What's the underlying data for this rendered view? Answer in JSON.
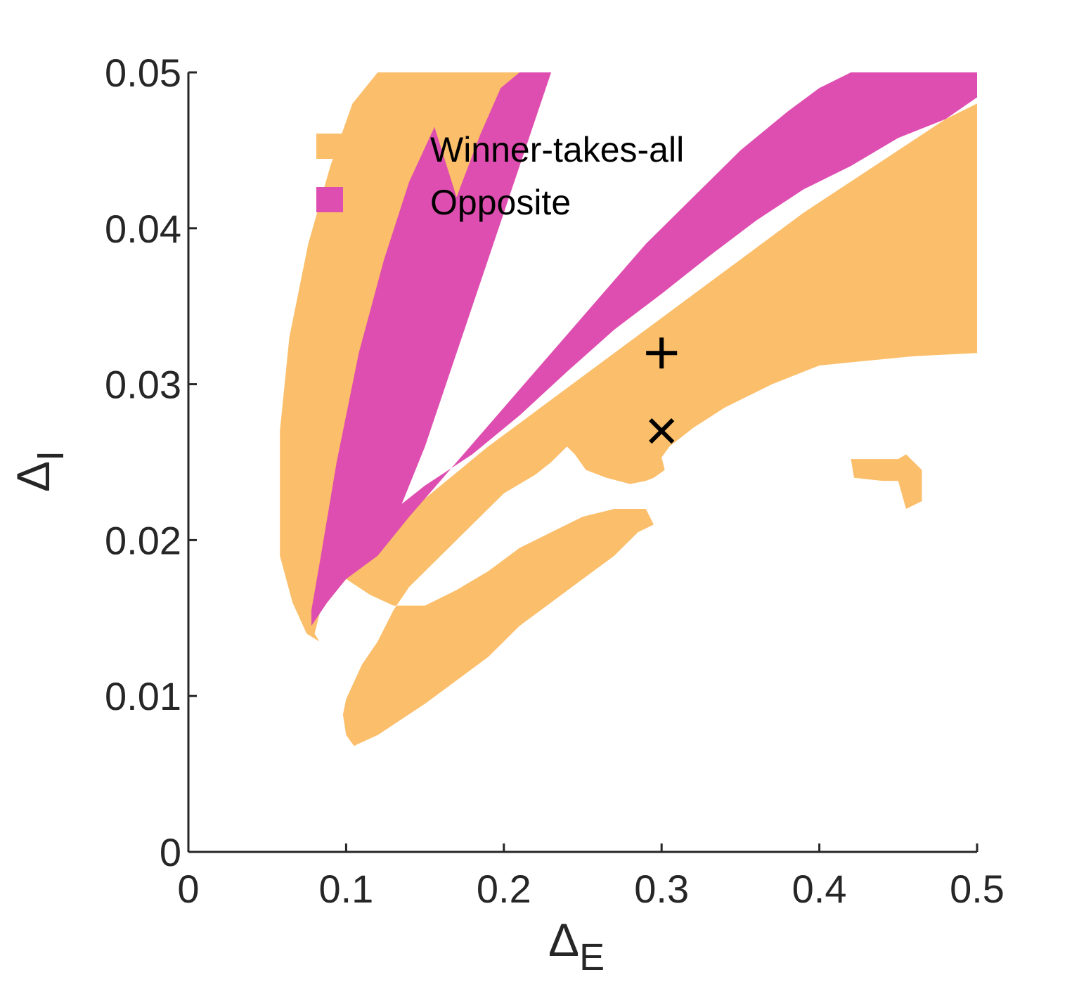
{
  "chart_data": {
    "type": "area",
    "title": "",
    "xlabel": {
      "symbol": "Δ",
      "subscript": "E"
    },
    "ylabel": {
      "symbol": "Δ",
      "subscript": "I"
    },
    "xlim": [
      0,
      0.5
    ],
    "ylim": [
      0,
      0.05
    ],
    "x_ticks": [
      0,
      0.1,
      0.2,
      0.3,
      0.4,
      0.5
    ],
    "x_tick_labels": [
      "0",
      "0.1",
      "0.2",
      "0.3",
      "0.4",
      "0.5"
    ],
    "y_ticks": [
      0,
      0.01,
      0.02,
      0.03,
      0.04,
      0.05
    ],
    "y_tick_labels": [
      "0",
      "0.01",
      "0.02",
      "0.03",
      "0.04",
      "0.05"
    ],
    "grid": false,
    "legend_position": "top-center",
    "series": [
      {
        "name": "Winner-takes-all",
        "color": "#fbbe6a",
        "regions": [
          [
            [
              0.12,
              0.05
            ],
            [
              0.21,
              0.05
            ],
            [
              0.2,
              0.046
            ],
            [
              0.18,
              0.042
            ],
            [
              0.16,
              0.036
            ],
            [
              0.14,
              0.03
            ],
            [
              0.12,
              0.025
            ],
            [
              0.1,
              0.02
            ],
            [
              0.085,
              0.016
            ],
            [
              0.08,
              0.014
            ],
            [
              0.083,
              0.0135
            ],
            [
              0.075,
              0.014
            ],
            [
              0.066,
              0.016
            ],
            [
              0.058,
              0.019
            ],
            [
              0.058,
              0.027
            ],
            [
              0.064,
              0.033
            ],
            [
              0.076,
              0.039
            ],
            [
              0.09,
              0.044
            ],
            [
              0.104,
              0.048
            ]
          ],
          [
            [
              0.074,
              0.0145
            ],
            [
              0.088,
              0.016
            ],
            [
              0.104,
              0.019
            ],
            [
              0.13,
              0.021
            ],
            [
              0.16,
              0.0235
            ],
            [
              0.19,
              0.026
            ],
            [
              0.23,
              0.029
            ],
            [
              0.27,
              0.032
            ],
            [
              0.31,
              0.035
            ],
            [
              0.35,
              0.038
            ],
            [
              0.39,
              0.041
            ],
            [
              0.42,
              0.043
            ],
            [
              0.45,
              0.045
            ],
            [
              0.48,
              0.047
            ],
            [
              0.5,
              0.048
            ],
            [
              0.5,
              0.032
            ],
            [
              0.46,
              0.0318
            ],
            [
              0.43,
              0.0315
            ],
            [
              0.4,
              0.0312
            ],
            [
              0.37,
              0.03
            ],
            [
              0.34,
              0.0285
            ],
            [
              0.32,
              0.0272
            ],
            [
              0.305,
              0.026
            ],
            [
              0.3,
              0.0253
            ],
            [
              0.302,
              0.0245
            ],
            [
              0.295,
              0.024
            ],
            [
              0.29,
              0.0238
            ],
            [
              0.28,
              0.0236
            ],
            [
              0.265,
              0.024
            ],
            [
              0.252,
              0.0245
            ],
            [
              0.245,
              0.0255
            ],
            [
              0.24,
              0.026
            ],
            [
              0.23,
              0.025
            ],
            [
              0.22,
              0.0242
            ],
            [
              0.2,
              0.023
            ],
            [
              0.18,
              0.021
            ],
            [
              0.16,
              0.019
            ],
            [
              0.14,
              0.017
            ],
            [
              0.13,
              0.0155
            ],
            [
              0.12,
              0.0135
            ],
            [
              0.11,
              0.012
            ],
            [
              0.1,
              0.0098
            ],
            [
              0.098,
              0.0088
            ],
            [
              0.1,
              0.0075
            ],
            [
              0.105,
              0.0068
            ],
            [
              0.12,
              0.0075
            ],
            [
              0.135,
              0.0085
            ],
            [
              0.15,
              0.0095
            ],
            [
              0.17,
              0.011
            ],
            [
              0.19,
              0.0125
            ],
            [
              0.21,
              0.0145
            ],
            [
              0.23,
              0.016
            ],
            [
              0.25,
              0.0175
            ],
            [
              0.27,
              0.019
            ],
            [
              0.285,
              0.0205
            ],
            [
              0.295,
              0.021
            ],
            [
              0.29,
              0.022
            ],
            [
              0.27,
              0.022
            ],
            [
              0.25,
              0.0215
            ],
            [
              0.23,
              0.0205
            ],
            [
              0.21,
              0.0195
            ],
            [
              0.19,
              0.018
            ],
            [
              0.17,
              0.0168
            ],
            [
              0.15,
              0.0158
            ],
            [
              0.13,
              0.0158
            ],
            [
              0.115,
              0.0165
            ],
            [
              0.1,
              0.0175
            ],
            [
              0.085,
              0.0158
            ]
          ],
          [
            [
              0.42,
              0.0252
            ],
            [
              0.45,
              0.0252
            ],
            [
              0.455,
              0.0255
            ],
            [
              0.465,
              0.0245
            ],
            [
              0.465,
              0.0225
            ],
            [
              0.455,
              0.022
            ],
            [
              0.45,
              0.0238
            ],
            [
              0.44,
              0.0238
            ],
            [
              0.422,
              0.024
            ]
          ]
        ]
      },
      {
        "name": "Opposite",
        "color": "#de4eb0",
        "regions": [
          [
            [
              0.21,
              0.05
            ],
            [
              0.23,
              0.05
            ],
            [
              0.21,
              0.044
            ],
            [
              0.19,
              0.038
            ],
            [
              0.17,
              0.032
            ],
            [
              0.15,
              0.026
            ],
            [
              0.13,
              0.021
            ],
            [
              0.115,
              0.019
            ],
            [
              0.105,
              0.019
            ],
            [
              0.11,
              0.0205
            ],
            [
              0.125,
              0.0215
            ],
            [
              0.15,
              0.0235
            ],
            [
              0.18,
              0.0255
            ],
            [
              0.21,
              0.028
            ],
            [
              0.24,
              0.0308
            ],
            [
              0.27,
              0.0335
            ],
            [
              0.3,
              0.0358
            ],
            [
              0.33,
              0.0382
            ],
            [
              0.36,
              0.0405
            ],
            [
              0.39,
              0.0425
            ],
            [
              0.42,
              0.044
            ],
            [
              0.45,
              0.0458
            ],
            [
              0.48,
              0.047
            ],
            [
              0.5,
              0.0484
            ],
            [
              0.5,
              0.05
            ],
            [
              0.42,
              0.05
            ],
            [
              0.4,
              0.049
            ],
            [
              0.38,
              0.0475
            ],
            [
              0.35,
              0.045
            ],
            [
              0.32,
              0.042
            ],
            [
              0.29,
              0.039
            ],
            [
              0.26,
              0.0355
            ],
            [
              0.23,
              0.032
            ],
            [
              0.2,
              0.0285
            ],
            [
              0.17,
              0.025
            ],
            [
              0.14,
              0.0215
            ],
            [
              0.12,
              0.019
            ],
            [
              0.1,
              0.0175
            ],
            [
              0.088,
              0.016
            ],
            [
              0.078,
              0.0145
            ],
            [
              0.078,
              0.0155
            ],
            [
              0.084,
              0.019
            ],
            [
              0.094,
              0.025
            ],
            [
              0.108,
              0.032
            ],
            [
              0.124,
              0.038
            ],
            [
              0.14,
              0.043
            ],
            [
              0.156,
              0.0465
            ],
            [
              0.17,
              0.042
            ],
            [
              0.185,
              0.046
            ],
            [
              0.198,
              0.049
            ]
          ]
        ]
      }
    ],
    "markers": [
      {
        "symbol": "+",
        "x": 0.3,
        "y": 0.032
      },
      {
        "symbol": "x",
        "x": 0.3,
        "y": 0.027
      }
    ]
  }
}
